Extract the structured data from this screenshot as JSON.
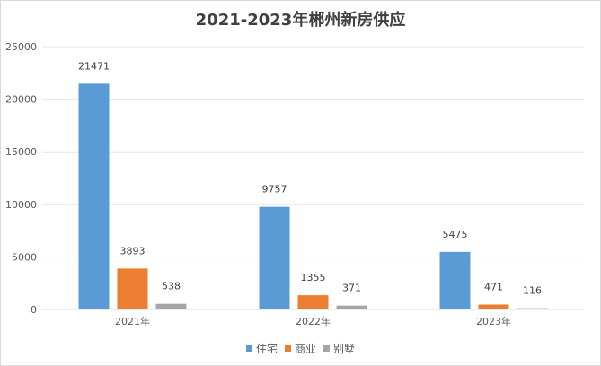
{
  "chart_data": {
    "type": "bar",
    "title": "2021-2023年郴州新房供应",
    "categories": [
      "2021年",
      "2022年",
      "2023年"
    ],
    "series": [
      {
        "name": "住宅",
        "color": "#5B9BD5",
        "values": [
          21471,
          9757,
          5475
        ]
      },
      {
        "name": "商业",
        "color": "#ED7D31",
        "values": [
          3893,
          1355,
          471
        ]
      },
      {
        "name": "别墅",
        "color": "#A5A5A5",
        "values": [
          538,
          371,
          116
        ]
      }
    ],
    "ylim": [
      0,
      25000
    ],
    "yticks": [
      0,
      5000,
      10000,
      15000,
      20000,
      25000
    ],
    "grid": true,
    "legend": "bottom"
  }
}
